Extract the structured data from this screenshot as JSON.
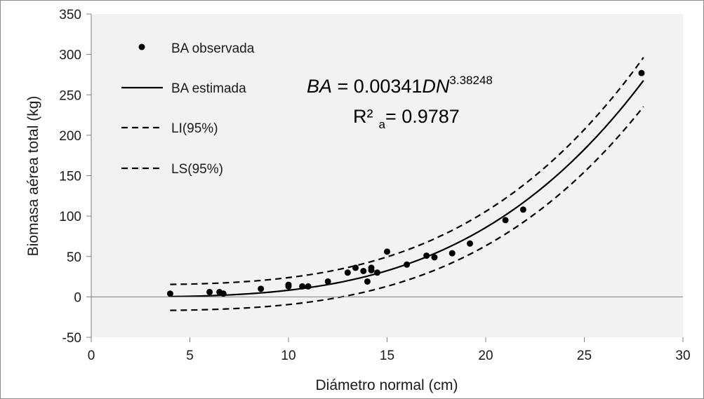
{
  "chart_data": {
    "type": "scatter",
    "xlabel": "Diámetro normal (cm)",
    "ylabel": "Biomasa aérea total (kg)",
    "xlim": [
      0,
      30
    ],
    "ylim": [
      -50,
      350
    ],
    "xticks": [
      0,
      5,
      10,
      15,
      20,
      25,
      30
    ],
    "yticks": [
      -50,
      0,
      50,
      100,
      150,
      200,
      250,
      300,
      350
    ],
    "grid": false,
    "legend_position": "top-left",
    "plot_background": "#f2f2f2",
    "series": [
      {
        "name": "BA observada",
        "kind": "points",
        "color": "#000000",
        "points": [
          [
            4.0,
            4
          ],
          [
            6.0,
            6
          ],
          [
            6.5,
            6
          ],
          [
            6.7,
            4
          ],
          [
            8.6,
            10
          ],
          [
            10.0,
            15
          ],
          [
            10.0,
            13
          ],
          [
            10.7,
            13
          ],
          [
            11.0,
            13
          ],
          [
            12.0,
            19
          ],
          [
            13.0,
            30
          ],
          [
            13.4,
            36
          ],
          [
            13.8,
            32
          ],
          [
            14.0,
            19
          ],
          [
            14.2,
            36
          ],
          [
            14.2,
            33
          ],
          [
            14.5,
            30
          ],
          [
            15.0,
            56
          ],
          [
            16.0,
            40
          ],
          [
            17.0,
            51
          ],
          [
            17.4,
            49
          ],
          [
            18.3,
            54
          ],
          [
            19.2,
            66
          ],
          [
            21.0,
            95
          ],
          [
            21.9,
            108
          ],
          [
            27.9,
            277
          ]
        ]
      },
      {
        "name": "BA estimada",
        "kind": "line",
        "dash": "solid",
        "color": "#000000",
        "model": {
          "a": 0.00341,
          "b": 3.38248
        },
        "x_range": [
          4,
          28
        ]
      },
      {
        "name": "LI(95%)",
        "kind": "line",
        "dash": "dashed",
        "color": "#000000",
        "model": {
          "a": 0.00341,
          "b": 3.38248
        },
        "offset": -17,
        "x_range": [
          4,
          28
        ]
      },
      {
        "name": "LS(95%)",
        "kind": "line",
        "dash": "dashed",
        "color": "#000000",
        "model": {
          "a": 0.00341,
          "b": 3.38248
        },
        "offset": 15,
        "x_range": [
          4,
          28
        ]
      }
    ],
    "annotations": {
      "eq_lhs": "BA",
      "eq_mid": " = 0.00341",
      "eq_var": "DN",
      "eq_exp": "3.38248",
      "r2_label": "R²",
      "r2_sub": "a",
      "r2_value": "= 0.9787"
    }
  }
}
